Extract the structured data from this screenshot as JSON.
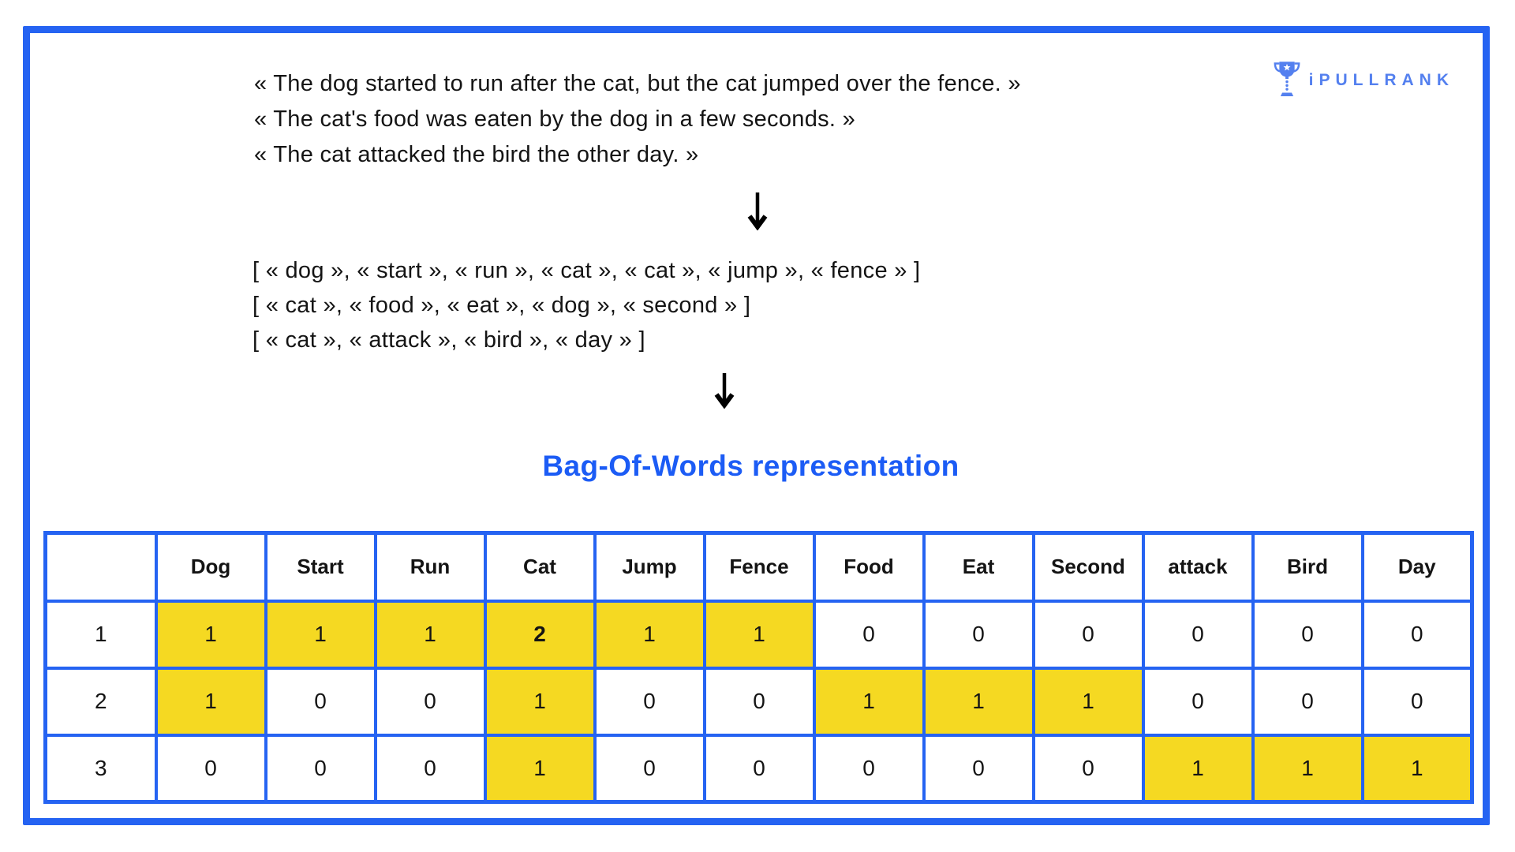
{
  "colors": {
    "accent": "#2563F2",
    "title_blue": "#1C5CF5",
    "logo_blue": "#5480EF",
    "highlight_yellow": "#F5D922",
    "text_ink": "#141414"
  },
  "logo": {
    "text": "iPULLRANK",
    "icon": "trophy-icon"
  },
  "sentences": {
    "lines": [
      "« The dog started to run after the cat, but the cat jumped over the fence. »",
      "« The cat's food was eaten by the dog in a few seconds. »",
      "« The cat attacked the bird the other day. »"
    ]
  },
  "token_lists": {
    "lines": [
      "[ « dog », « start », « run », « cat », « cat », « jump », « fence » ]",
      "[ « cat », « food », « eat », « dog », « second » ]",
      "[ « cat », « attack », « bird », « day » ]"
    ]
  },
  "title": {
    "text": "Bag-Of-Words representation"
  },
  "table": {
    "header": [
      "",
      "Dog",
      "Start",
      "Run",
      "Cat",
      "Jump",
      "Fence",
      "Food",
      "Eat",
      "Second",
      "attack",
      "Bird",
      "Day"
    ],
    "rows": [
      {
        "label": "1",
        "values": [
          "1",
          "1",
          "1",
          "2",
          "1",
          "1",
          "0",
          "0",
          "0",
          "0",
          "0",
          "0"
        ],
        "highlight": [
          1,
          1,
          1,
          1,
          1,
          1,
          0,
          0,
          0,
          0,
          0,
          0
        ],
        "bold": [
          0,
          0,
          0,
          1,
          0,
          0,
          0,
          0,
          0,
          0,
          0,
          0
        ]
      },
      {
        "label": "2",
        "values": [
          "1",
          "0",
          "0",
          "1",
          "0",
          "0",
          "1",
          "1",
          "1",
          "0",
          "0",
          "0"
        ],
        "highlight": [
          1,
          0,
          0,
          1,
          0,
          0,
          1,
          1,
          1,
          0,
          0,
          0
        ],
        "bold": [
          0,
          0,
          0,
          0,
          0,
          0,
          0,
          0,
          0,
          0,
          0,
          0
        ]
      },
      {
        "label": "3",
        "values": [
          "0",
          "0",
          "0",
          "1",
          "0",
          "0",
          "0",
          "0",
          "0",
          "1",
          "1",
          "1"
        ],
        "highlight": [
          0,
          0,
          0,
          1,
          0,
          0,
          0,
          0,
          0,
          1,
          1,
          1
        ],
        "bold": [
          0,
          0,
          0,
          0,
          0,
          0,
          0,
          0,
          0,
          0,
          0,
          0
        ]
      }
    ]
  }
}
